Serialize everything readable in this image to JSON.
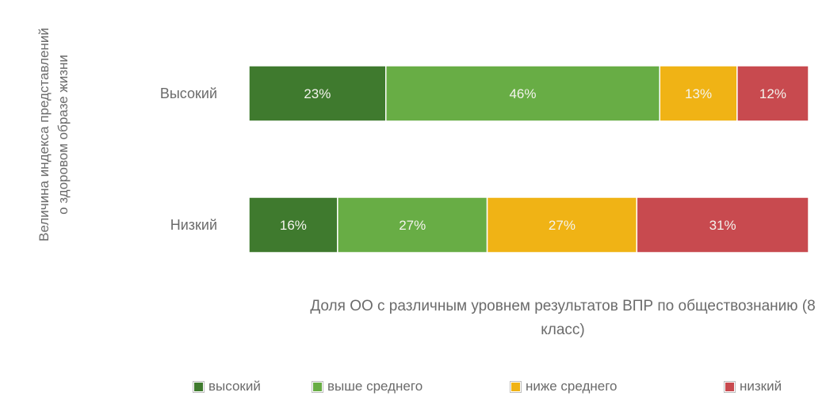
{
  "chart_data": {
    "type": "bar",
    "orientation": "horizontal",
    "stacked": "percent",
    "categories": [
      "Высокий",
      "Низкий"
    ],
    "series": [
      {
        "name": "высокий",
        "values": [
          23,
          16
        ],
        "labels": [
          "23%",
          "16%"
        ],
        "color": "#3f7a2e"
      },
      {
        "name": "выше среднего",
        "values": [
          46,
          27
        ],
        "labels": [
          "46%",
          "27%"
        ],
        "color": "#68ad45"
      },
      {
        "name": "ниже среднего",
        "values": [
          13,
          27
        ],
        "labels": [
          "13%",
          "27%"
        ],
        "color": "#f0b315"
      },
      {
        "name": "низкий",
        "values": [
          12,
          31
        ],
        "labels": [
          "12%",
          "31%"
        ],
        "color": "#c84a4f"
      }
    ],
    "ylabel": "Величина индекса представлений о здоровом образе жизни",
    "xlabel": "Доля ОО с различным уровнем результатов ВПР по обществознанию (8 класс)",
    "xlim": [
      0,
      100
    ],
    "legend_position": "bottom",
    "grid": false
  }
}
